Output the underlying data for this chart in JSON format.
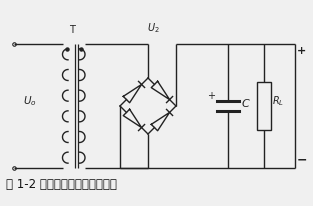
{
  "title": "图 1-2 桥式整流、电容滤波电路",
  "background": "#f0f0f0",
  "line_color": "#222222",
  "fig_width": 3.13,
  "fig_height": 2.06,
  "dpi": 100,
  "label_Uo": "$U_o$",
  "label_T": "T",
  "label_U2": "$U_2$",
  "label_C": "$C$",
  "label_RL": "$R_L$",
  "label_plus_top": "+",
  "label_minus_bot": "−",
  "label_cap_plus": "+"
}
